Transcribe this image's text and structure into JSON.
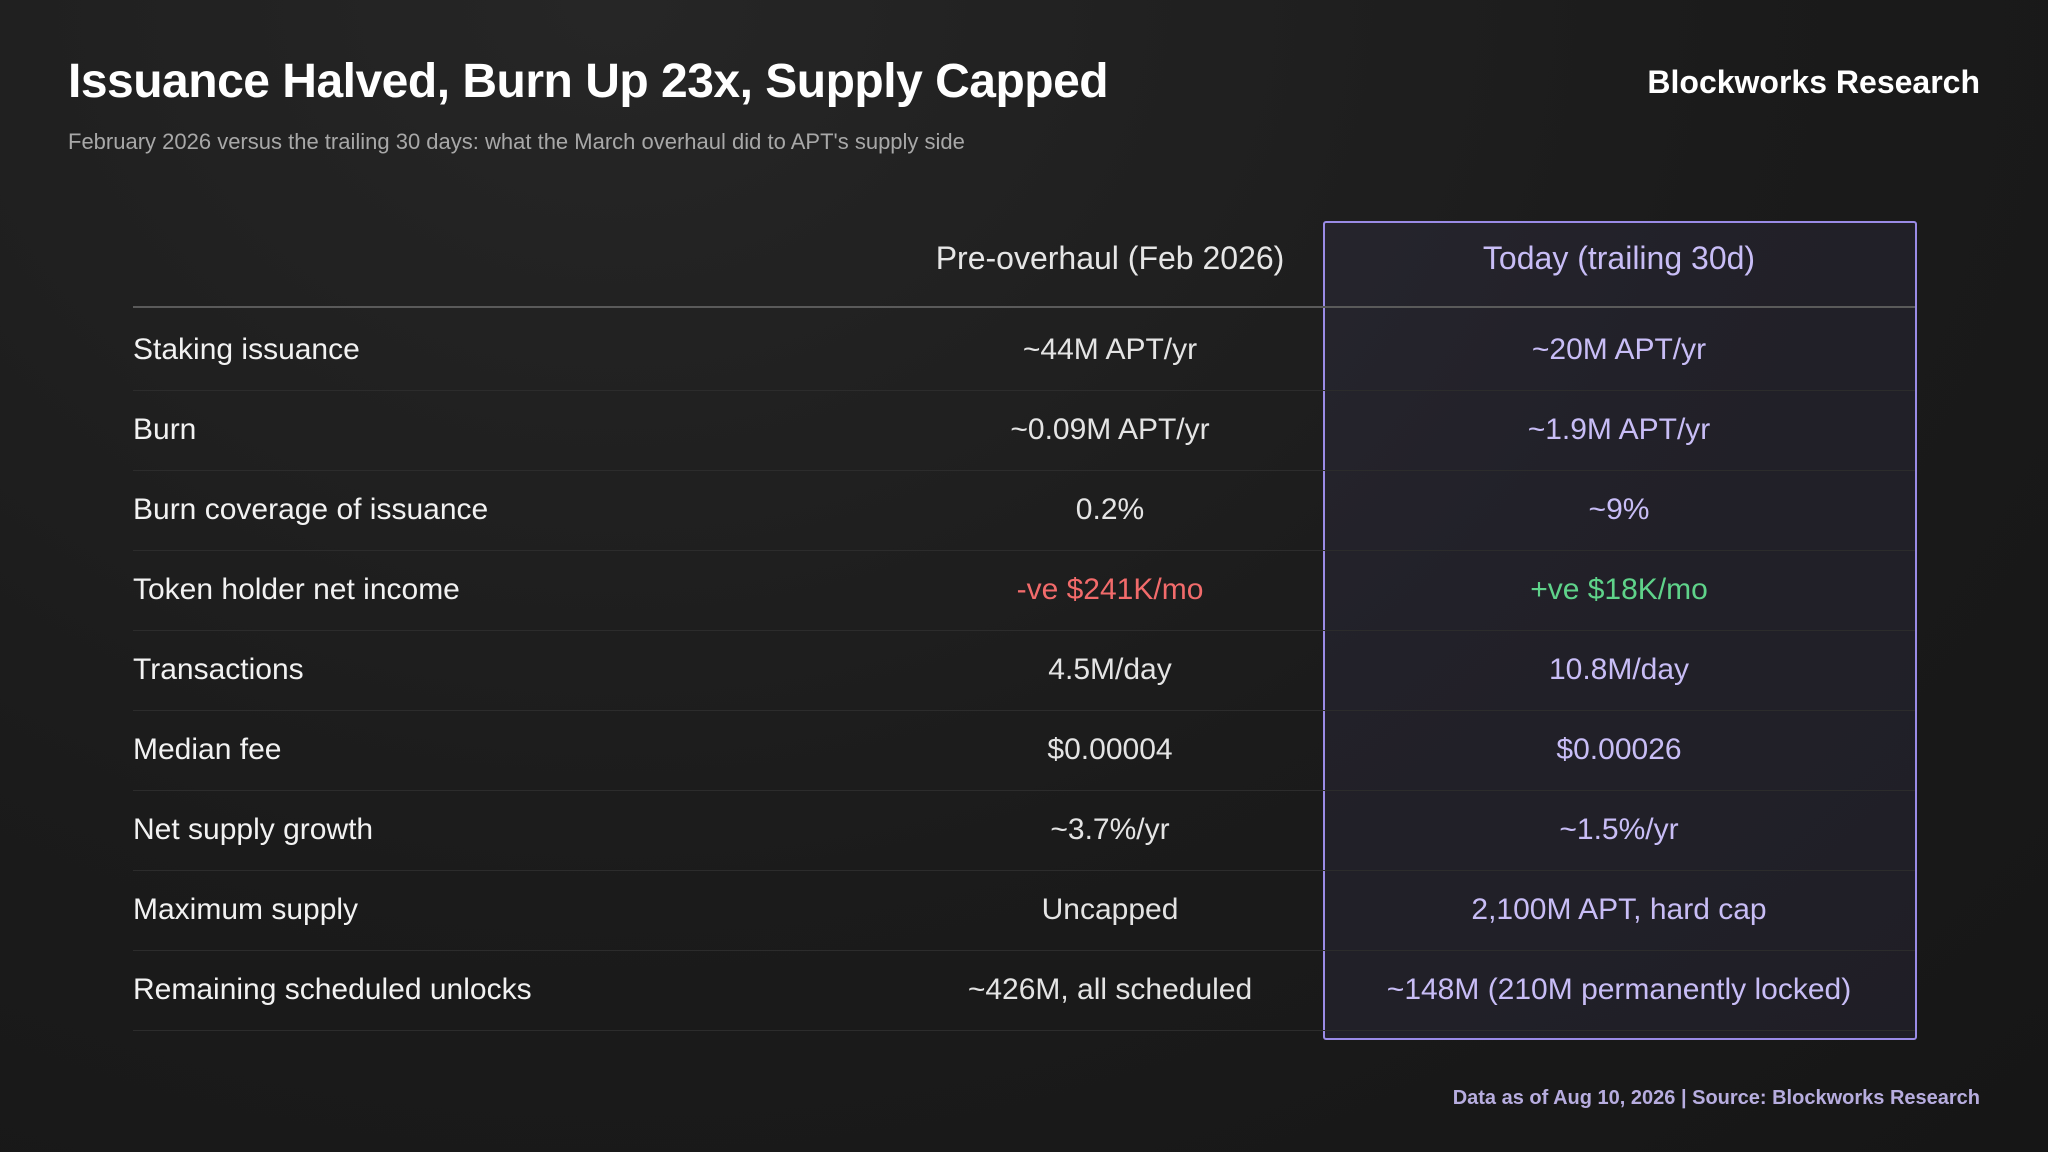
{
  "header": {
    "title": "Issuance Halved, Burn Up 23x, Supply Capped",
    "subtitle": "February 2026 versus the trailing 30 days: what the March overhaul did to APT's supply side",
    "brand": "Blockworks Research"
  },
  "table": {
    "columns": [
      "Pre-overhaul (Feb 2026)",
      "Today (trailing 30d)"
    ],
    "rows": [
      [
        "Staking issuance",
        "~44M APT/yr",
        "~20M APT/yr"
      ],
      [
        "Burn",
        "~0.09M APT/yr",
        "~1.9M APT/yr"
      ],
      [
        "Burn coverage of issuance",
        "0.2%",
        "~9%"
      ],
      [
        "Token holder net income",
        "-ve $241K/mo",
        "+ve $18K/mo"
      ],
      [
        "Transactions",
        "4.5M/day",
        "10.8M/day"
      ],
      [
        "Median fee",
        "$0.00004",
        "$0.00026"
      ],
      [
        "Net supply growth",
        "~3.7%/yr",
        "~1.5%/yr"
      ],
      [
        "Maximum supply",
        "Uncapped",
        "2,100M APT, hard cap"
      ],
      [
        "Remaining scheduled unlocks",
        "~426M, all scheduled",
        "~148M (210M permanently locked)"
      ]
    ]
  },
  "footer": "Data as of Aug 10, 2026 | Source: Blockworks Research"
}
